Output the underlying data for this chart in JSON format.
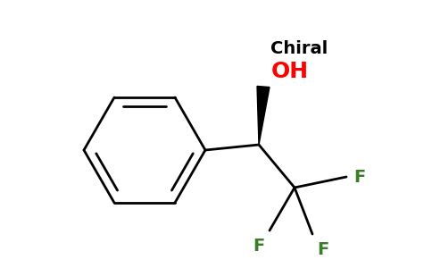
{
  "background_color": "#ffffff",
  "bond_color": "#000000",
  "oh_color": "#ff0000",
  "f_color": "#3a7d27",
  "chiral_color": "#000000",
  "chiral_text": "Chiral",
  "oh_text": "OH",
  "f_text": "F",
  "line_width": 2.0,
  "figsize": [
    4.84,
    3.0
  ],
  "dpi": 100
}
